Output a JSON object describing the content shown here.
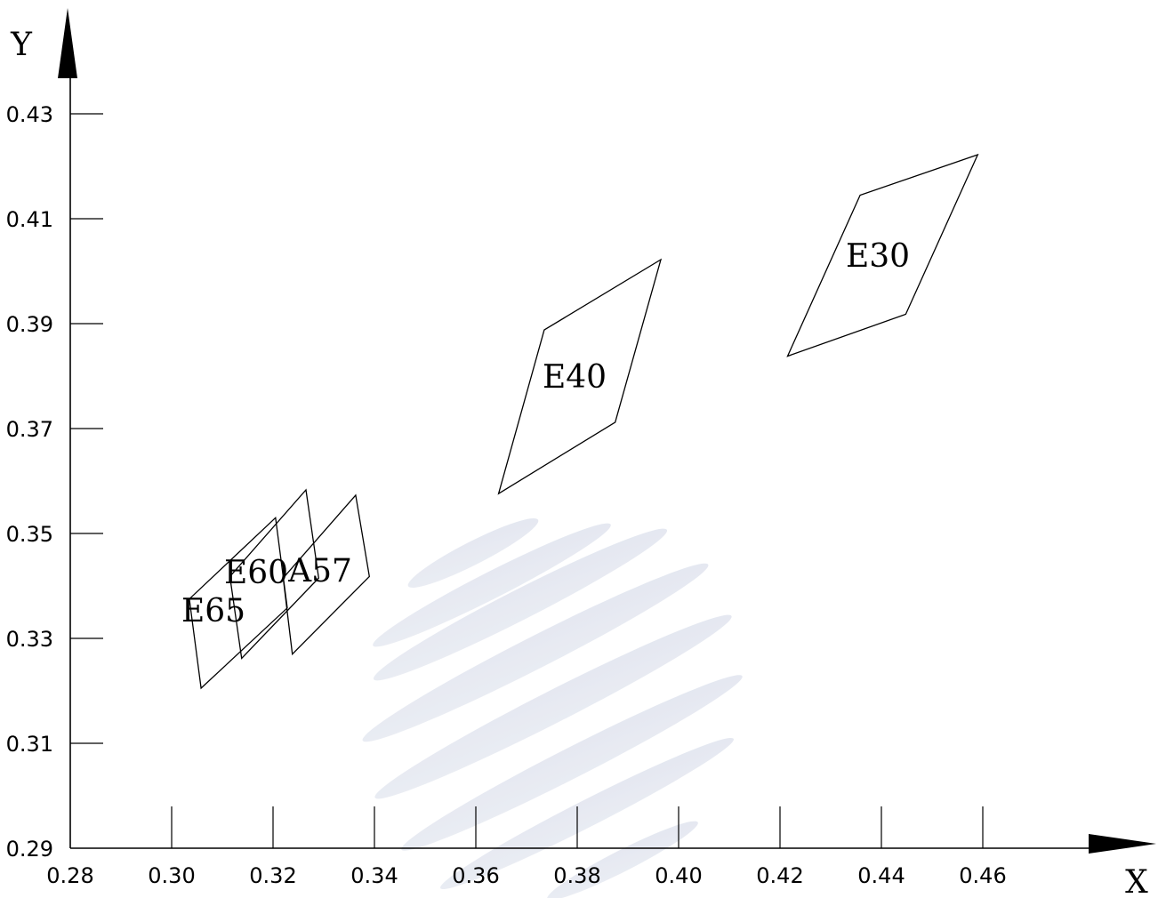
{
  "chart_data": {
    "type": "scatter",
    "xlabel": "X",
    "ylabel": "Y",
    "xlim": [
      0.28,
      0.48
    ],
    "ylim": [
      0.29,
      0.43
    ],
    "x_ticks": [
      "0.28",
      "0.30",
      "0.32",
      "0.34",
      "0.36",
      "0.38",
      "0.40",
      "0.42",
      "0.44",
      "0.46"
    ],
    "y_ticks": [
      "0.29",
      "0.31",
      "0.33",
      "0.35",
      "0.37",
      "0.39",
      "0.41",
      "0.43"
    ],
    "grid": false,
    "regions": [
      {
        "label": "E65",
        "vertices": [
          [
            0.3058,
            0.3205
          ],
          [
            0.3035,
            0.3375
          ],
          [
            0.3205,
            0.353
          ],
          [
            0.3228,
            0.3358
          ]
        ]
      },
      {
        "label": "E60",
        "vertices": [
          [
            0.3138,
            0.3262
          ],
          [
            0.3115,
            0.3418
          ],
          [
            0.3265,
            0.3583
          ],
          [
            0.329,
            0.3415
          ]
        ]
      },
      {
        "label": "A57",
        "vertices": [
          [
            0.3238,
            0.327
          ],
          [
            0.322,
            0.3415
          ],
          [
            0.3363,
            0.3573
          ],
          [
            0.339,
            0.3418
          ]
        ]
      },
      {
        "label": "E40",
        "vertices": [
          [
            0.3645,
            0.3576
          ],
          [
            0.3735,
            0.3888
          ],
          [
            0.3965,
            0.4022
          ],
          [
            0.3875,
            0.3712
          ]
        ]
      },
      {
        "label": "E30",
        "vertices": [
          [
            0.4215,
            0.3838
          ],
          [
            0.4358,
            0.4145
          ],
          [
            0.459,
            0.4222
          ],
          [
            0.4448,
            0.3918
          ]
        ]
      }
    ]
  }
}
